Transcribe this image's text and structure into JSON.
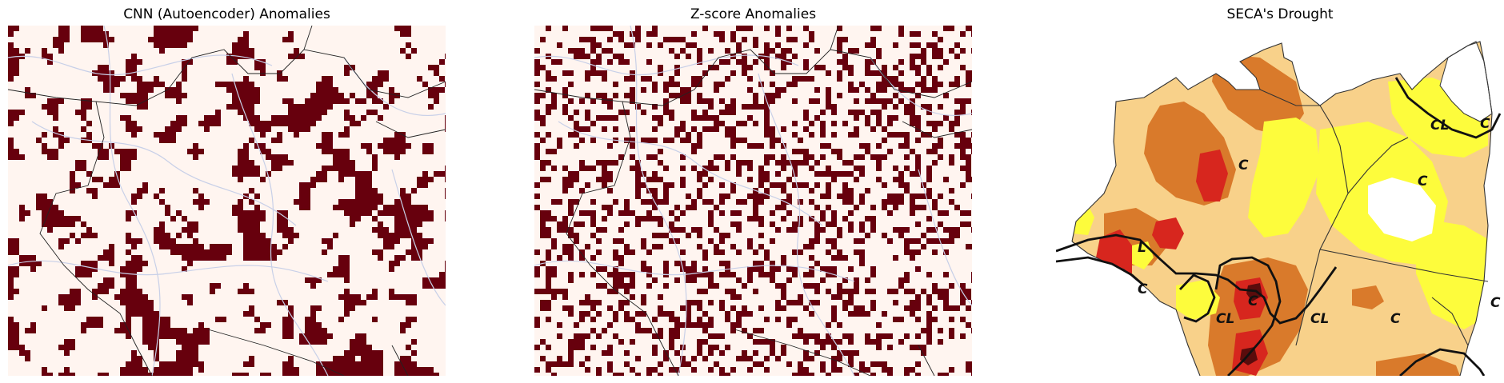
{
  "panels": [
    {
      "id": "cnn",
      "title": "CNN (Autoencoder) Anomalies",
      "density": 0.3,
      "clustered": true
    },
    {
      "id": "zscore",
      "title": "Z-score Anomalies",
      "density": 0.34,
      "clustered": false
    },
    {
      "id": "seca",
      "title": "SECA's Drought"
    }
  ],
  "colors": {
    "background": "#fff5f0",
    "anomaly": "#67000d",
    "rivers": "#c8d0e8",
    "borders": "#222222",
    "seca_exceptional": "#5a0c0c",
    "seca_extreme": "#d7261e",
    "seca_severe": "#d97a2b",
    "seca_moderate": "#f8d18a",
    "seca_abnormal": "#fdfc3c",
    "seca_none": "#ffffff"
  },
  "seca_labels": [
    {
      "text": "C",
      "key": "l1"
    },
    {
      "text": "C",
      "key": "l2"
    },
    {
      "text": "CL",
      "key": "l3"
    },
    {
      "text": "C",
      "key": "l4"
    },
    {
      "text": "L",
      "key": "l5"
    },
    {
      "text": "C",
      "key": "l6"
    },
    {
      "text": "C",
      "key": "l7"
    },
    {
      "text": "CL",
      "key": "l8"
    },
    {
      "text": "CL",
      "key": "l9"
    },
    {
      "text": "C",
      "key": "l10"
    },
    {
      "text": "C",
      "key": "l11"
    }
  ]
}
